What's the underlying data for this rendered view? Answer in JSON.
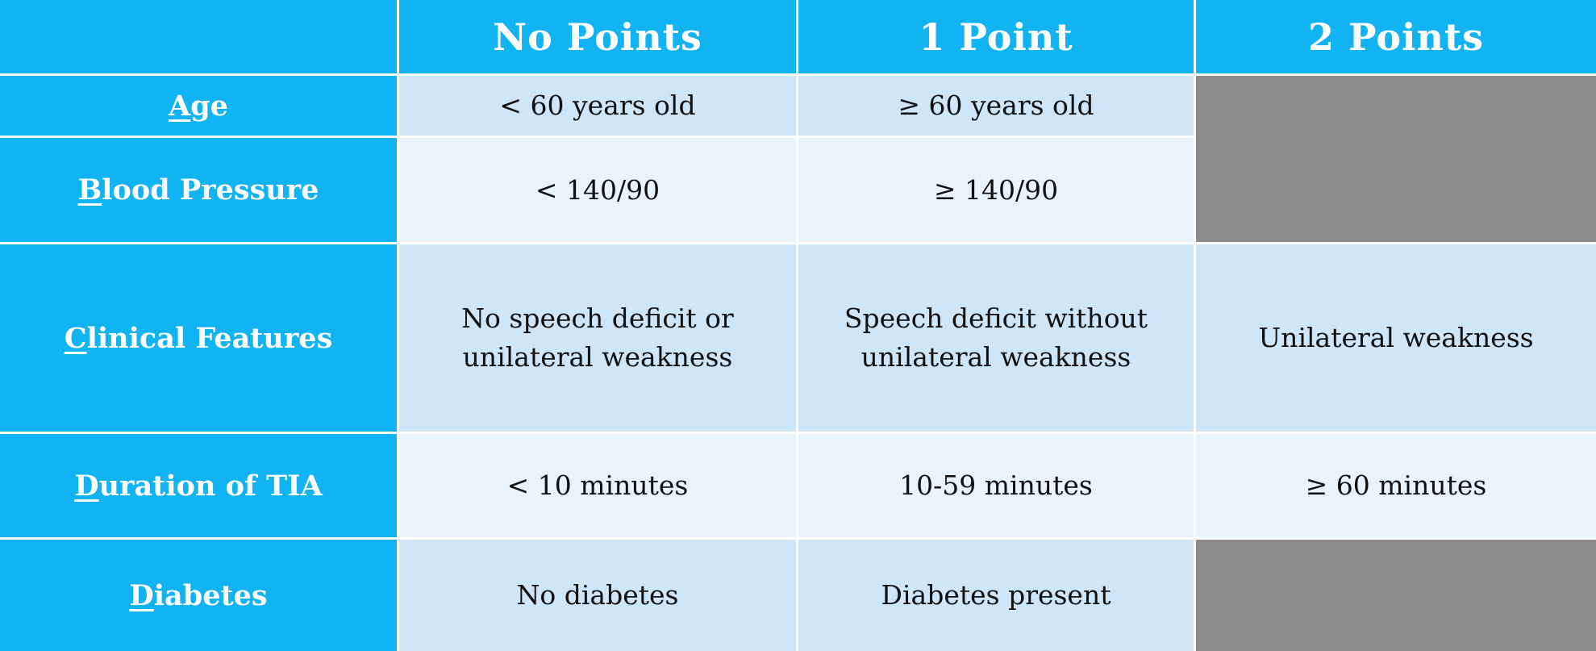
{
  "header": {
    "corner": "",
    "columns": [
      "No Points",
      "1 Point",
      "2 Points"
    ]
  },
  "rows": [
    {
      "label_lead": "A",
      "label_rest": "ge",
      "no_points": "< 60 years old",
      "one_point": "≥ 60 years old",
      "two_points": null
    },
    {
      "label_lead": "B",
      "label_rest": "lood Pressure",
      "no_points": "< 140/90",
      "one_point": "≥ 140/90",
      "two_points": null
    },
    {
      "label_lead": "C",
      "label_rest": "linical Features",
      "no_points_line1": "No speech deficit or",
      "no_points_line2": "unilateral weakness",
      "one_point_line1": "Speech deficit without",
      "one_point_line2": "unilateral weakness",
      "two_points": "Unilateral weakness"
    },
    {
      "label_lead": "D",
      "label_rest": "uration of TIA",
      "no_points": "< 10 minutes",
      "one_point": "10-59 minutes",
      "two_points": "≥ 60 minutes"
    },
    {
      "label_lead": "D",
      "label_rest": "iabetes",
      "no_points": "No diabetes",
      "one_point": "Diabetes present",
      "two_points": null
    }
  ],
  "colors": {
    "header_blue": "#12b3f2",
    "cell_dark": "#cfe6f9",
    "cell_light": "#e8f3fc",
    "not_applicable_gray": "#8c8c8c"
  }
}
